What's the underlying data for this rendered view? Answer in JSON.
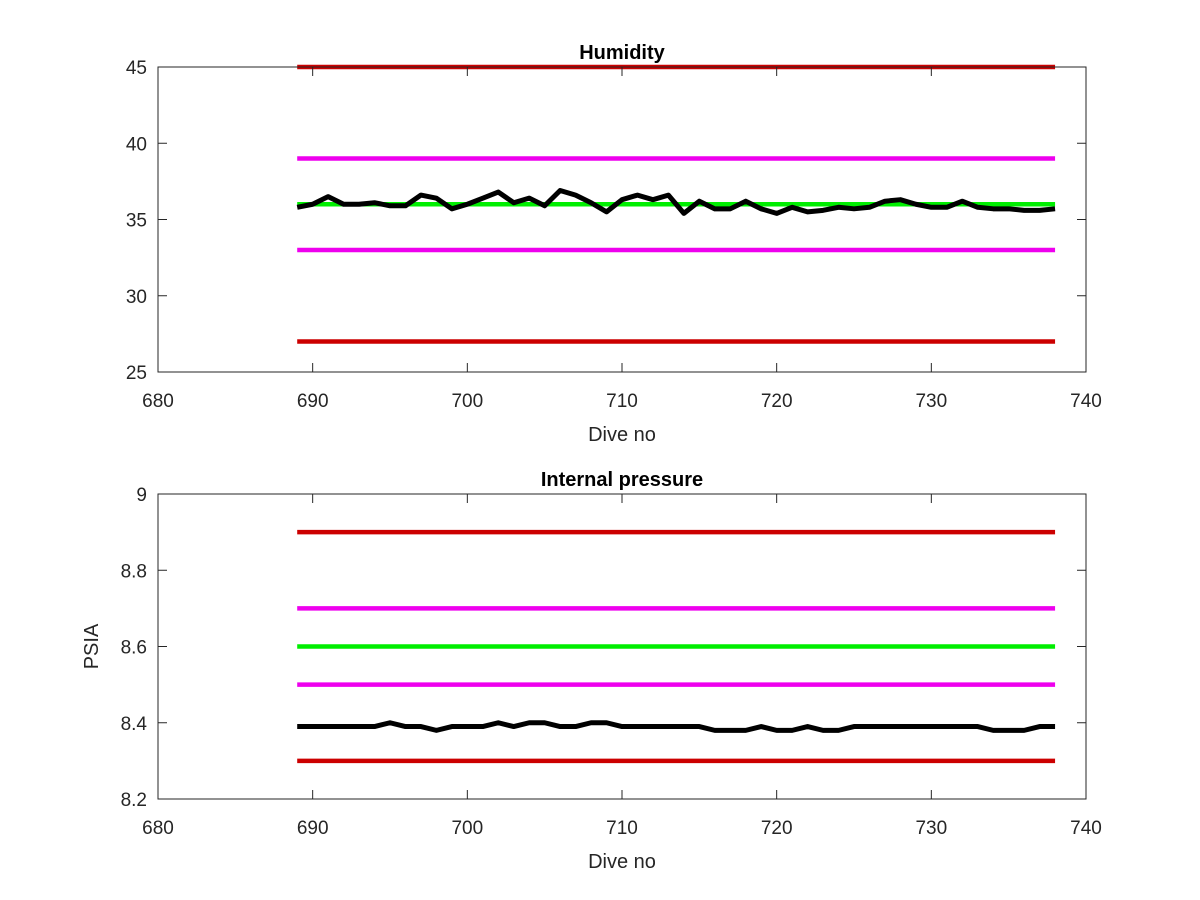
{
  "chart_data": [
    {
      "type": "line",
      "title": "Humidity",
      "xlabel": "Dive no",
      "ylabel": "",
      "xlim": [
        680,
        740
      ],
      "ylim": [
        25,
        45
      ],
      "xticks": [
        680,
        690,
        700,
        710,
        720,
        730,
        740
      ],
      "yticks": [
        25,
        30,
        35,
        40,
        45
      ],
      "series": [
        {
          "color": "#cc0000",
          "x": [
            689,
            738
          ],
          "y": [
            45,
            45
          ]
        },
        {
          "color": "#ee00ee",
          "x": [
            689,
            738
          ],
          "y": [
            39,
            39
          ]
        },
        {
          "color": "#ee00ee",
          "x": [
            689,
            738
          ],
          "y": [
            33,
            33
          ]
        },
        {
          "color": "#cc0000",
          "x": [
            689,
            738
          ],
          "y": [
            27,
            27
          ]
        },
        {
          "color": "#00ee00",
          "x": [
            689,
            738
          ],
          "y": [
            36,
            36
          ]
        },
        {
          "color": "#000000",
          "x": [
            689,
            690,
            691,
            692,
            693,
            694,
            695,
            696,
            697,
            698,
            699,
            700,
            701,
            702,
            703,
            704,
            705,
            706,
            707,
            708,
            709,
            710,
            711,
            712,
            713,
            714,
            715,
            716,
            717,
            718,
            719,
            720,
            721,
            722,
            723,
            724,
            725,
            726,
            727,
            728,
            729,
            730,
            731,
            732,
            733,
            734,
            735,
            736,
            737,
            738
          ],
          "y": [
            35.8,
            36.0,
            36.5,
            36.0,
            36.0,
            36.1,
            35.9,
            35.9,
            36.6,
            36.4,
            35.7,
            36.0,
            36.4,
            36.8,
            36.1,
            36.4,
            35.9,
            36.9,
            36.6,
            36.1,
            35.5,
            36.3,
            36.6,
            36.3,
            36.6,
            35.4,
            36.2,
            35.7,
            35.7,
            36.2,
            35.7,
            35.4,
            35.8,
            35.5,
            35.6,
            35.8,
            35.7,
            35.8,
            36.2,
            36.3,
            36.0,
            35.8,
            35.8,
            36.2,
            35.8,
            35.7,
            35.7,
            35.6,
            35.6,
            35.7
          ]
        }
      ]
    },
    {
      "type": "line",
      "title": "Internal pressure",
      "xlabel": "Dive no",
      "ylabel": "PSIA",
      "xlim": [
        680,
        740
      ],
      "ylim": [
        8.2,
        9
      ],
      "xticks": [
        680,
        690,
        700,
        710,
        720,
        730,
        740
      ],
      "yticks": [
        8.2,
        8.4,
        8.6,
        8.8,
        9
      ],
      "series": [
        {
          "color": "#cc0000",
          "x": [
            689,
            738
          ],
          "y": [
            8.9,
            8.9
          ]
        },
        {
          "color": "#ee00ee",
          "x": [
            689,
            738
          ],
          "y": [
            8.7,
            8.7
          ]
        },
        {
          "color": "#00ee00",
          "x": [
            689,
            738
          ],
          "y": [
            8.6,
            8.6
          ]
        },
        {
          "color": "#ee00ee",
          "x": [
            689,
            738
          ],
          "y": [
            8.5,
            8.5
          ]
        },
        {
          "color": "#cc0000",
          "x": [
            689,
            738
          ],
          "y": [
            8.3,
            8.3
          ]
        },
        {
          "color": "#000000",
          "x": [
            689,
            690,
            691,
            692,
            693,
            694,
            695,
            696,
            697,
            698,
            699,
            700,
            701,
            702,
            703,
            704,
            705,
            706,
            707,
            708,
            709,
            710,
            711,
            712,
            713,
            714,
            715,
            716,
            717,
            718,
            719,
            720,
            721,
            722,
            723,
            724,
            725,
            726,
            727,
            728,
            729,
            730,
            731,
            732,
            733,
            734,
            735,
            736,
            737,
            738
          ],
          "y": [
            8.39,
            8.39,
            8.39,
            8.39,
            8.39,
            8.39,
            8.4,
            8.39,
            8.39,
            8.38,
            8.39,
            8.39,
            8.39,
            8.4,
            8.39,
            8.4,
            8.4,
            8.39,
            8.39,
            8.4,
            8.4,
            8.39,
            8.39,
            8.39,
            8.39,
            8.39,
            8.39,
            8.38,
            8.38,
            8.38,
            8.39,
            8.38,
            8.38,
            8.39,
            8.38,
            8.38,
            8.39,
            8.39,
            8.39,
            8.39,
            8.39,
            8.39,
            8.39,
            8.39,
            8.39,
            8.38,
            8.38,
            8.38,
            8.39,
            8.39
          ]
        }
      ]
    }
  ]
}
